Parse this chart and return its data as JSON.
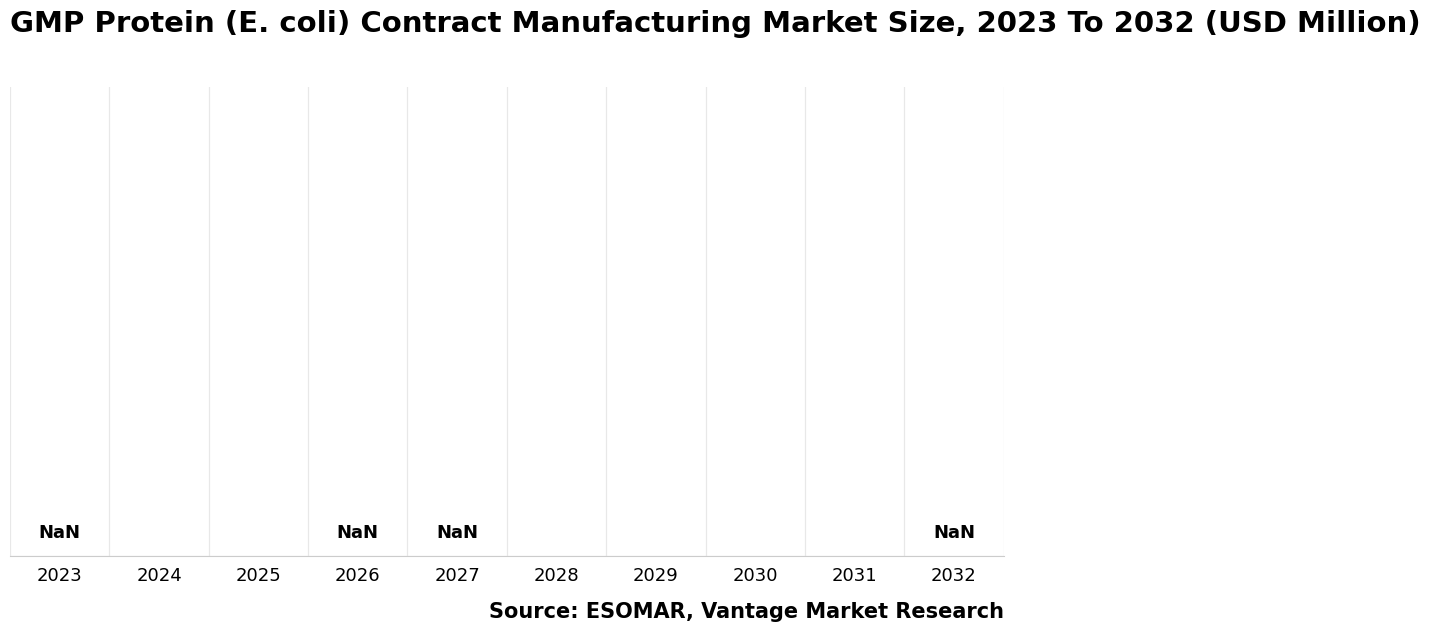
{
  "title": "GMP Protein (E. coli) Contract Manufacturing Market Size, 2023 To 2032 (USD Million)",
  "categories": [
    "2023",
    "2024",
    "2025",
    "2026",
    "2027",
    "2028",
    "2029",
    "2030",
    "2031",
    "2032"
  ],
  "nan_label_indices": [
    0,
    3,
    4,
    9
  ],
  "nan_label": "NaN",
  "source_text": "Source: ESOMAR, Vantage Market Research",
  "background_color": "#ffffff",
  "plot_bg_color": "#ffffff",
  "grid_color": "#e8e8e8",
  "title_fontsize": 21,
  "tick_fontsize": 13,
  "source_fontsize": 15,
  "nan_fontsize": 13,
  "ylim": [
    0,
    1
  ]
}
